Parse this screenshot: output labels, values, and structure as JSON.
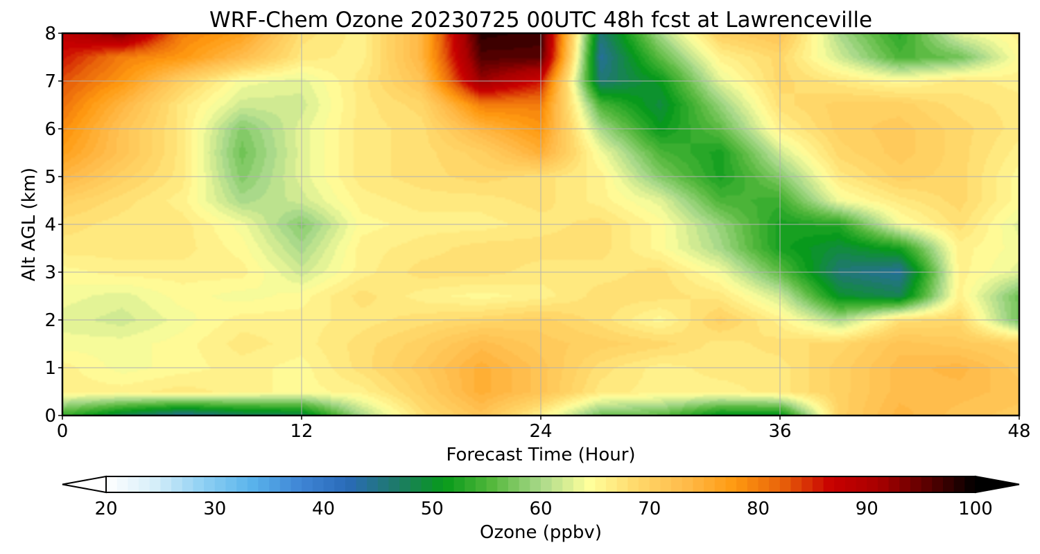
{
  "chart_data": {
    "type": "heatmap",
    "title": "WRF-Chem Ozone  20230725 00UTC 48h fcst at Lawrenceville",
    "xlabel": "Forecast Time (Hour)",
    "ylabel": "Alt AGL (km)",
    "xlim": [
      0,
      48
    ],
    "ylim": [
      0,
      8
    ],
    "xticks": [
      0,
      12,
      24,
      36,
      48
    ],
    "yticks": [
      0,
      1,
      2,
      3,
      4,
      5,
      6,
      7,
      8
    ],
    "grid": true,
    "colorbar": {
      "label": "Ozone  (ppbv)",
      "min": 20,
      "max": 100,
      "ticks": [
        20,
        30,
        40,
        50,
        60,
        70,
        80,
        90,
        100
      ],
      "extend": "both",
      "colors": [
        "#ffffff",
        "#d6eef9",
        "#8fd0f3",
        "#5ab4ec",
        "#3f86d6",
        "#2a6ab8",
        "#1e7a6a",
        "#079a1a",
        "#55b83c",
        "#a9d98a",
        "#ffff9c",
        "#ffd86a",
        "#ffbb4a",
        "#ff9a10",
        "#e8620a",
        "#c80000",
        "#a80000",
        "#5a0000",
        "#000000"
      ]
    },
    "x": [
      0,
      3,
      6,
      9,
      12,
      15,
      18,
      21,
      24,
      27,
      30,
      33,
      36,
      39,
      42,
      45,
      48
    ],
    "y": [
      0,
      0.5,
      1,
      1.5,
      2,
      2.5,
      3,
      3.5,
      4,
      4.5,
      5,
      5.5,
      6,
      6.5,
      7,
      7.5,
      8
    ],
    "z": [
      [
        54,
        48,
        44,
        47,
        48,
        60,
        68,
        72,
        66,
        57,
        56,
        50,
        50,
        70,
        74,
        72,
        71
      ],
      [
        66,
        66,
        67,
        66,
        65,
        66,
        70,
        75,
        72,
        67,
        66,
        66,
        67,
        70,
        73,
        73,
        72
      ],
      [
        66,
        64,
        65,
        66,
        65,
        68,
        71,
        75,
        72,
        68,
        66,
        67,
        67,
        70,
        73,
        74,
        71
      ],
      [
        64,
        64,
        65,
        67,
        66,
        68,
        70,
        73,
        71,
        70,
        69,
        67,
        68,
        69,
        72,
        71,
        70
      ],
      [
        63,
        62,
        64,
        66,
        66,
        67,
        68,
        69,
        70,
        68,
        65,
        70,
        66,
        60,
        68,
        69,
        57
      ],
      [
        64,
        63,
        65,
        64,
        65,
        68,
        66,
        65,
        66,
        68,
        68,
        67,
        62,
        50,
        48,
        66,
        57
      ],
      [
        65,
        66,
        66,
        66,
        62,
        66,
        68,
        68,
        67,
        67,
        68,
        64,
        56,
        46,
        44,
        66,
        63
      ],
      [
        67,
        67,
        67,
        65,
        60,
        66,
        67,
        68,
        68,
        68,
        65,
        60,
        52,
        49,
        52,
        66,
        64
      ],
      [
        68,
        67,
        67,
        64,
        58,
        65,
        66,
        66,
        67,
        68,
        65,
        59,
        52,
        53,
        64,
        68,
        63
      ],
      [
        70,
        68,
        66,
        60,
        62,
        66,
        67,
        67,
        68,
        66,
        63,
        55,
        54,
        64,
        67,
        69,
        65
      ],
      [
        74,
        70,
        67,
        58,
        63,
        67,
        68,
        69,
        68,
        66,
        58,
        52,
        58,
        67,
        70,
        69,
        65
      ],
      [
        77,
        72,
        67,
        57,
        63,
        67,
        68,
        70,
        75,
        64,
        55,
        52,
        62,
        69,
        71,
        69,
        66
      ],
      [
        79,
        72,
        67,
        58,
        63,
        67,
        68,
        74,
        78,
        60,
        51,
        56,
        66,
        70,
        71,
        69,
        67
      ],
      [
        81,
        74,
        67,
        62,
        62,
        67,
        69,
        80,
        80,
        55,
        49,
        59,
        68,
        70,
        70,
        68,
        67
      ],
      [
        83,
        78,
        70,
        64,
        63,
        67,
        72,
        92,
        86,
        46,
        51,
        63,
        69,
        67,
        65,
        67,
        66
      ],
      [
        86,
        80,
        78,
        73,
        67,
        66,
        74,
        96,
        96,
        44,
        56,
        66,
        69,
        62,
        55,
        57,
        65
      ],
      [
        88,
        94,
        80,
        77,
        68,
        66,
        74,
        98,
        97,
        46,
        60,
        70,
        72,
        60,
        53,
        63,
        66
      ]
    ]
  }
}
